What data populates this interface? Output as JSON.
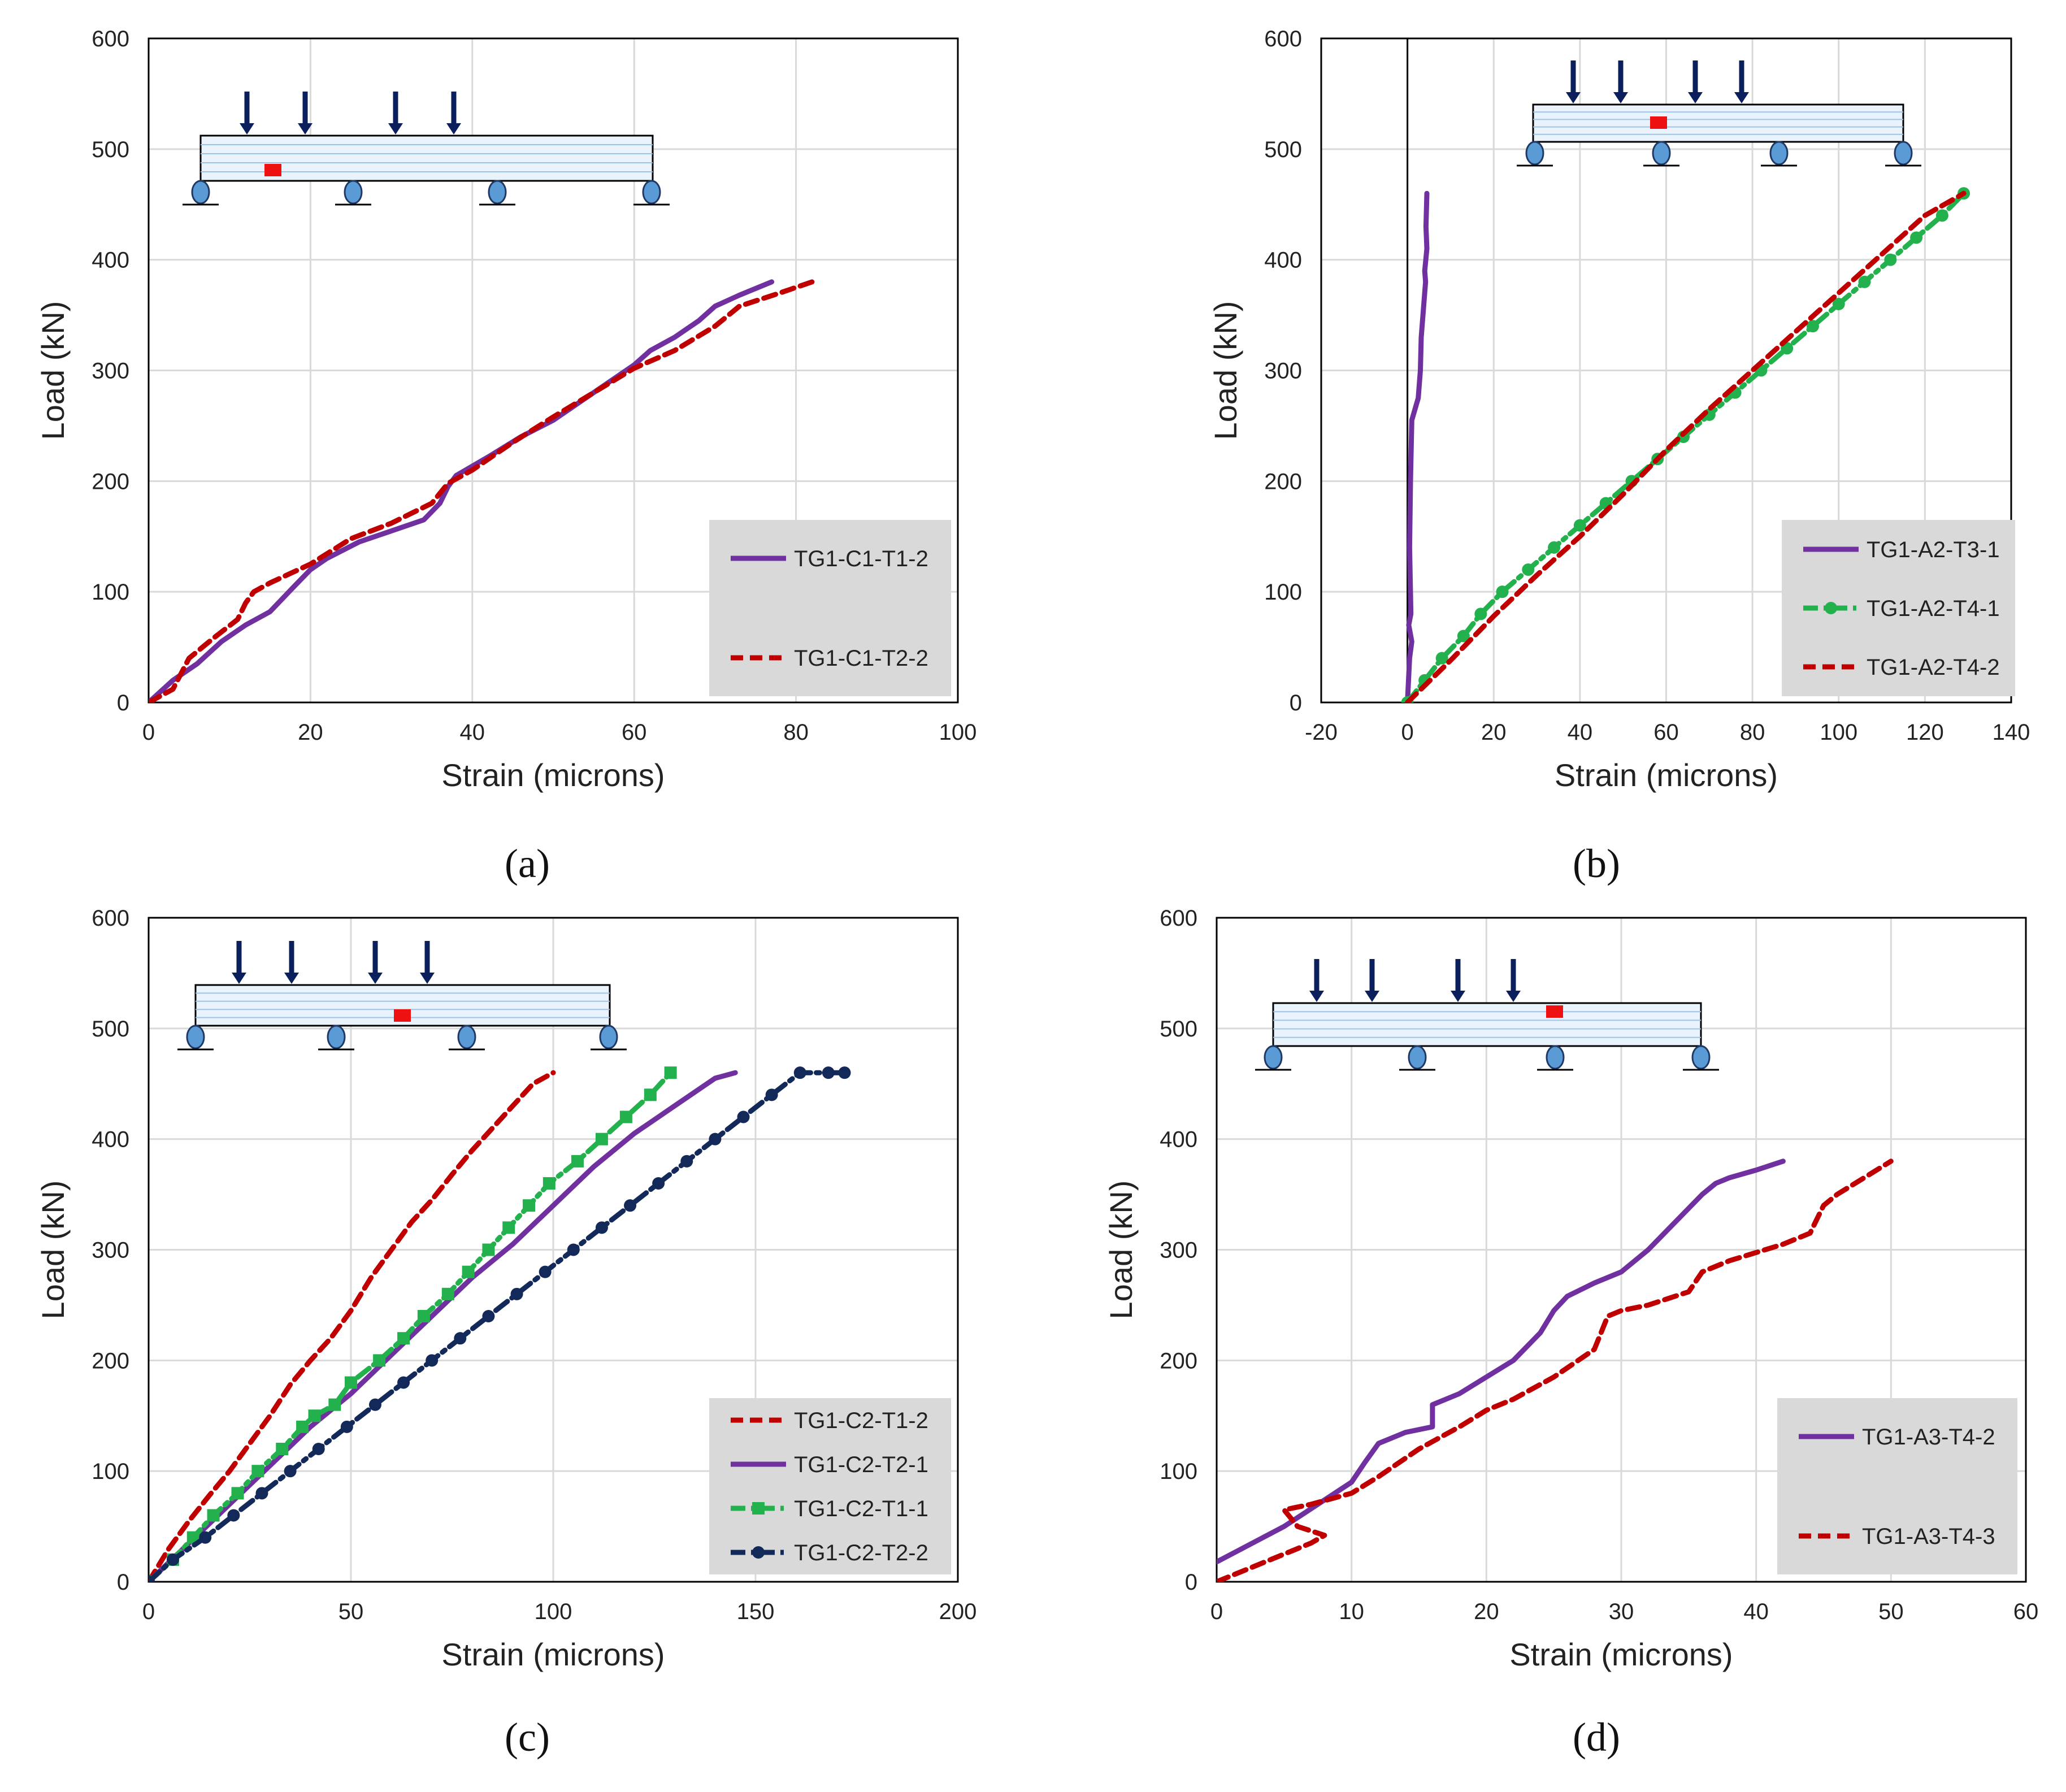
{
  "colors": {
    "purple": "#7030a0",
    "red": "#c00000",
    "green": "#22b14c",
    "navy": "#13295a",
    "grid": "#d9d9d9",
    "legend_bg": "#d9d9d9",
    "beam_fill": "#eaf3fb",
    "beam_line": "#9dc3e6",
    "support": "#5b9bd5",
    "arrow": "#0b1f5c",
    "gauge": "#ee1111"
  },
  "chart_data": [
    {
      "panel": "(a)",
      "type": "line",
      "xlabel": "Strain (microns)",
      "ylabel": "Load (kN)",
      "xlim": [
        0,
        100
      ],
      "ylim": [
        0,
        600
      ],
      "xticks": [
        "0",
        "20",
        "40",
        "60",
        "80",
        "100"
      ],
      "yticks": [
        "0",
        "100",
        "200",
        "300",
        "400",
        "500",
        "600"
      ],
      "grid": true,
      "legend_position": "bottom-right",
      "schematic": {
        "loads": 4,
        "supports": 4,
        "gauge": "left span"
      },
      "series": [
        {
          "name": "TG1-C1-T1-2",
          "color": "purple",
          "style": "solid",
          "marker": "none",
          "x": [
            0,
            3,
            6,
            9,
            12,
            15,
            18,
            20,
            22,
            26,
            30,
            34,
            36,
            37,
            38,
            42,
            46,
            50,
            55,
            60,
            62,
            65,
            68,
            70,
            73,
            77
          ],
          "y": [
            0,
            20,
            35,
            55,
            70,
            82,
            105,
            120,
            130,
            145,
            155,
            165,
            180,
            195,
            205,
            222,
            240,
            255,
            280,
            305,
            318,
            330,
            345,
            358,
            368,
            380
          ]
        },
        {
          "name": "TG1-C1-T2-2",
          "color": "red",
          "style": "dash",
          "marker": "none",
          "x": [
            0,
            3,
            5,
            8,
            11,
            12,
            13,
            15,
            20,
            25,
            30,
            35,
            37,
            40,
            45,
            50,
            55,
            60,
            65,
            70,
            73,
            78,
            82
          ],
          "y": [
            0,
            12,
            40,
            58,
            75,
            90,
            100,
            108,
            125,
            148,
            162,
            180,
            198,
            210,
            235,
            258,
            280,
            302,
            318,
            340,
            358,
            370,
            380
          ]
        }
      ]
    },
    {
      "panel": "(b)",
      "type": "line",
      "xlabel": "Strain (microns)",
      "ylabel": "Load (kN)",
      "xlim": [
        -20,
        140
      ],
      "ylim": [
        0,
        600
      ],
      "xticks": [
        "-20",
        "0",
        "20",
        "40",
        "60",
        "80",
        "100",
        "120",
        "140"
      ],
      "yticks": [
        "0",
        "100",
        "200",
        "300",
        "400",
        "500",
        "600"
      ],
      "grid": true,
      "legend_position": "bottom-right",
      "schematic": {
        "loads": 4,
        "supports": 4,
        "gauge": "left span"
      },
      "series": [
        {
          "name": "TG1-A2-T3-1",
          "color": "purple",
          "style": "solid",
          "marker": "none",
          "x": [
            0,
            0.5,
            1,
            0.3,
            0.8,
            0.5,
            0.7,
            1,
            2.5,
            3,
            3.2,
            3.8,
            4.2,
            4,
            4.5,
            4.3,
            4.5
          ],
          "y": [
            0,
            40,
            55,
            70,
            80,
            140,
            200,
            255,
            275,
            300,
            330,
            360,
            380,
            390,
            410,
            430,
            460
          ]
        },
        {
          "name": "TG1-A2-T4-1",
          "color": "green",
          "style": "dashdot",
          "marker": "circle",
          "x": [
            0,
            4,
            8,
            13,
            17,
            22,
            28,
            34,
            40,
            46,
            52,
            58,
            64,
            70,
            76,
            82,
            88,
            94,
            100,
            106,
            112,
            118,
            124,
            129
          ],
          "y": [
            0,
            20,
            40,
            60,
            80,
            100,
            120,
            140,
            160,
            180,
            200,
            220,
            240,
            260,
            280,
            300,
            320,
            340,
            360,
            380,
            400,
            420,
            440,
            460
          ]
        },
        {
          "name": "TG1-A2-T4-2",
          "color": "red",
          "style": "dash",
          "marker": "none",
          "x": [
            0,
            10,
            20,
            30,
            40,
            50,
            60,
            70,
            80,
            90,
            100,
            110,
            120,
            129
          ],
          "y": [
            0,
            38,
            78,
            115,
            150,
            188,
            228,
            265,
            300,
            335,
            370,
            405,
            440,
            460
          ]
        }
      ]
    },
    {
      "panel": "(c)",
      "type": "line",
      "xlabel": "Strain (microns)",
      "ylabel": "Load (kN)",
      "xlim": [
        0,
        200
      ],
      "ylim": [
        0,
        600
      ],
      "xticks": [
        "0",
        "50",
        "100",
        "150",
        "200"
      ],
      "yticks": [
        "0",
        "100",
        "200",
        "300",
        "400",
        "500",
        "600"
      ],
      "grid": true,
      "legend_position": "bottom-right",
      "schematic": {
        "loads": 4,
        "supports": 4,
        "gauge": "middle span"
      },
      "series": [
        {
          "name": "TG1-C2-T1-2",
          "color": "red",
          "style": "dash",
          "marker": "none",
          "x": [
            0,
            5,
            10,
            15,
            20,
            25,
            30,
            35,
            40,
            45,
            50,
            55,
            60,
            65,
            70,
            75,
            80,
            85,
            90,
            95,
            100
          ],
          "y": [
            0,
            30,
            55,
            78,
            100,
            125,
            150,
            178,
            200,
            220,
            245,
            275,
            300,
            325,
            345,
            368,
            390,
            410,
            430,
            450,
            460
          ]
        },
        {
          "name": "TG1-C2-T2-1",
          "color": "purple",
          "style": "solid",
          "marker": "none",
          "x": [
            0,
            10,
            20,
            30,
            40,
            50,
            60,
            70,
            80,
            90,
            100,
            110,
            120,
            130,
            140,
            145
          ],
          "y": [
            0,
            35,
            70,
            105,
            140,
            170,
            205,
            240,
            275,
            305,
            340,
            375,
            405,
            430,
            455,
            460
          ]
        },
        {
          "name": "TG1-C2-T1-1",
          "color": "green",
          "style": "dashdot",
          "marker": "square",
          "x": [
            0,
            6,
            11,
            16,
            22,
            27,
            33,
            38,
            41,
            46,
            50,
            57,
            63,
            68,
            74,
            79,
            84,
            89,
            94,
            99,
            106,
            112,
            118,
            124,
            129
          ],
          "y": [
            0,
            20,
            40,
            60,
            80,
            100,
            120,
            140,
            150,
            160,
            180,
            200,
            220,
            240,
            260,
            280,
            300,
            320,
            340,
            360,
            380,
            400,
            420,
            440,
            460
          ]
        },
        {
          "name": "TG1-C2-T2-2",
          "color": "navy",
          "style": "dashdot",
          "marker": "circle",
          "x": [
            0,
            6,
            14,
            21,
            28,
            35,
            42,
            49,
            56,
            63,
            70,
            77,
            84,
            91,
            98,
            105,
            112,
            119,
            126,
            133,
            140,
            147,
            154,
            161,
            168,
            172
          ],
          "y": [
            0,
            20,
            40,
            60,
            80,
            100,
            120,
            140,
            160,
            180,
            200,
            220,
            240,
            260,
            280,
            300,
            320,
            340,
            360,
            380,
            400,
            420,
            440,
            460,
            460,
            460
          ]
        }
      ]
    },
    {
      "panel": "(d)",
      "type": "line",
      "xlabel": "Strain (microns)",
      "ylabel": "Load (kN)",
      "xlim": [
        0,
        60
      ],
      "ylim": [
        0,
        600
      ],
      "xticks": [
        "0",
        "10",
        "20",
        "30",
        "40",
        "50",
        "60"
      ],
      "yticks": [
        "0",
        "100",
        "200",
        "300",
        "400",
        "500",
        "600"
      ],
      "grid": true,
      "legend_position": "bottom-right",
      "schematic": {
        "loads": 4,
        "supports": 4,
        "gauge": "right span"
      },
      "series": [
        {
          "name": "TG1-A3-T4-2",
          "color": "purple",
          "style": "solid",
          "marker": "none",
          "x": [
            0,
            5,
            10,
            11,
            12,
            14,
            16,
            16,
            18,
            20,
            22,
            24,
            25,
            26,
            28,
            30,
            32,
            34,
            36,
            37,
            38,
            40,
            42
          ],
          "y": [
            18,
            50,
            90,
            108,
            125,
            135,
            140,
            160,
            170,
            185,
            200,
            225,
            245,
            258,
            270,
            280,
            300,
            325,
            350,
            360,
            365,
            372,
            380
          ]
        },
        {
          "name": "TG1-A3-T4-3",
          "color": "red",
          "style": "dash",
          "marker": "none",
          "x": [
            0,
            4,
            7,
            8,
            6,
            5,
            7,
            10,
            12,
            15,
            18,
            20,
            22,
            25,
            28,
            29,
            30,
            32,
            35,
            36,
            38,
            42,
            44,
            45,
            46,
            48,
            50
          ],
          "y": [
            0,
            20,
            35,
            42,
            50,
            65,
            70,
            80,
            95,
            120,
            140,
            155,
            165,
            185,
            210,
            240,
            245,
            250,
            262,
            280,
            290,
            305,
            315,
            340,
            350,
            365,
            380
          ]
        }
      ]
    }
  ]
}
